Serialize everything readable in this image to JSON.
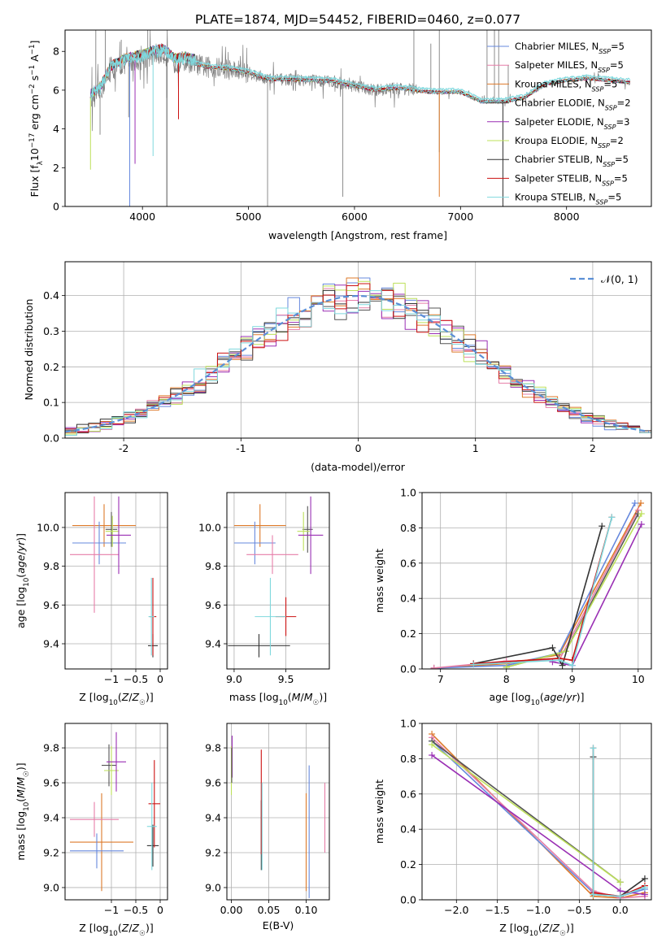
{
  "figure": {
    "title": "PLATE=1874, MJD=54452, FIBERID=0460, z=0.077"
  },
  "colors": {
    "Chabrier MILES": "#6688dd",
    "Salpeter MILES": "#e67ea8",
    "Kroupa MILES": "#dd7a2a",
    "Chabrier ELODIE": "#555555",
    "Salpeter ELODIE": "#9a2fb4",
    "Kroupa ELODIE": "#bde05a",
    "Chabrier STELIB": "#333333",
    "Salpeter STELIB": "#cc1111",
    "Kroupa STELIB": "#7fd8dd",
    "data": "#808080",
    "gaussian": "#5b8fd6"
  },
  "chart_data": [
    {
      "id": "spectrum",
      "type": "line",
      "xlabel": "wavelength [Angstrom, rest frame]",
      "ylabel": "Flux [f_λ10^-17 erg cm^-2 s^-1 A^-1]",
      "xlim": [
        3270,
        8800
      ],
      "ylim": [
        0,
        9.1
      ],
      "xticks": [
        4000,
        5000,
        6000,
        7000,
        8000
      ],
      "yticks": [
        0,
        2,
        4,
        6,
        8
      ],
      "grid": false,
      "legend_position": "upper-right",
      "legend": [
        {
          "model": "Chabrier MILES",
          "prefix": "Chabrier MILES, N",
          "sub": "SSP",
          "suffix": "=5"
        },
        {
          "model": "Salpeter MILES",
          "prefix": "Salpeter MILES, N",
          "sub": "SSP",
          "suffix": "=5"
        },
        {
          "model": "Kroupa MILES",
          "prefix": "Kroupa MILES, N",
          "sub": "SSP",
          "suffix": "=5"
        },
        {
          "model": "Chabrier ELODIE",
          "prefix": "Chabrier ELODIE, N",
          "sub": "SSP",
          "suffix": "=2"
        },
        {
          "model": "Salpeter ELODIE",
          "prefix": "Salpeter ELODIE, N",
          "sub": "SSP",
          "suffix": "=3"
        },
        {
          "model": "Kroupa ELODIE",
          "prefix": "Kroupa ELODIE, N",
          "sub": "SSP",
          "suffix": "=2"
        },
        {
          "model": "Chabrier STELIB",
          "prefix": "Chabrier STELIB, N",
          "sub": "SSP",
          "suffix": "=5"
        },
        {
          "model": "Salpeter STELIB",
          "prefix": "Salpeter STELIB, N",
          "sub": "SSP",
          "suffix": "=5"
        },
        {
          "model": "Kroupa STELIB",
          "prefix": "Kroupa STELIB, N",
          "sub": "SSP",
          "suffix": "=5"
        }
      ],
      "continuum": [
        [
          3520,
          5.6
        ],
        [
          3600,
          5.9
        ],
        [
          3700,
          7.0
        ],
        [
          3800,
          7.3
        ],
        [
          3900,
          7.5
        ],
        [
          4000,
          7.6
        ],
        [
          4100,
          7.8
        ],
        [
          4200,
          7.9
        ],
        [
          4300,
          7.4
        ],
        [
          4400,
          7.5
        ],
        [
          4600,
          7.2
        ],
        [
          4800,
          7.1
        ],
        [
          5000,
          6.9
        ],
        [
          5200,
          6.55
        ],
        [
          5400,
          6.55
        ],
        [
          5600,
          6.5
        ],
        [
          5800,
          6.45
        ],
        [
          6000,
          6.2
        ],
        [
          6200,
          6.0
        ],
        [
          6400,
          6.1
        ],
        [
          6500,
          6.05
        ],
        [
          6700,
          5.9
        ],
        [
          7000,
          5.9
        ],
        [
          7200,
          5.4
        ],
        [
          7400,
          5.4
        ],
        [
          7600,
          5.6
        ],
        [
          7800,
          6.3
        ],
        [
          8000,
          6.5
        ],
        [
          8200,
          6.6
        ],
        [
          8400,
          6.5
        ],
        [
          8600,
          6.4
        ]
      ],
      "model_spike_dips": [
        [
          3510,
          1.9
        ],
        [
          3880,
          0
        ],
        [
          3930,
          2.2
        ],
        [
          4100,
          2.6
        ],
        [
          4230,
          0
        ],
        [
          4340,
          4.5
        ],
        [
          6800,
          0.5
        ],
        [
          7400,
          0
        ]
      ],
      "data_spike_peaks": [
        [
          3560,
          9.1
        ],
        [
          3650,
          9.1
        ],
        [
          3800,
          8.6
        ],
        [
          4050,
          9.1
        ],
        [
          6560,
          9.1
        ],
        [
          6720,
          8.4
        ],
        [
          6800,
          9.1
        ],
        [
          7250,
          9.1
        ],
        [
          7320,
          9.1
        ],
        [
          7360,
          9.1
        ],
        [
          7450,
          7.3
        ]
      ],
      "data_spike_dips": [
        [
          3600,
          3.7
        ],
        [
          3870,
          4.6
        ],
        [
          4230,
          5.6
        ],
        [
          5180,
          0
        ],
        [
          5890,
          0.5
        ],
        [
          6580,
          6.2
        ],
        [
          6800,
          2.8
        ]
      ]
    },
    {
      "id": "residual-histogram",
      "type": "bar",
      "xlabel": "(data-model)/error",
      "ylabel": "Normed distribution",
      "xlim": [
        -2.5,
        2.5
      ],
      "ylim": [
        0,
        0.495
      ],
      "xticks": [
        -2,
        -1,
        0,
        1,
        2
      ],
      "yticks": [
        0.0,
        0.1,
        0.2,
        0.3,
        0.4
      ],
      "grid": true,
      "legend_position": "upper-right",
      "gaussian_label": "𝒩(0, 1)",
      "bin_width": 0.1,
      "bin_start": -2.5
    },
    {
      "id": "age-vs-Z",
      "type": "scatter",
      "xlabel": "Z [log10(Z/Z☉)]",
      "ylabel": "age [log10(age/yr)]",
      "xlim": [
        -1.95,
        0.15
      ],
      "ylim": [
        9.27,
        10.18
      ],
      "xticks": [
        -1,
        -0.5,
        0
      ],
      "xticklabels": [
        "−1",
        "−0.5",
        "0"
      ],
      "yticks": [
        9.4,
        9.6,
        9.8,
        10.0
      ],
      "grid": true,
      "errorbars": [
        {
          "model": "Kroupa MILES",
          "x": -1.15,
          "y": 10.01,
          "xerr": 0.65,
          "yerr": 0.11
        },
        {
          "model": "Chabrier MILES",
          "x": -1.25,
          "y": 9.92,
          "xerr": 0.55,
          "yerr": 0.11
        },
        {
          "model": "Salpeter MILES",
          "x": -1.35,
          "y": 9.86,
          "xerr": 0.5,
          "yerr": 0.3
        },
        {
          "model": "Chabrier ELODIE",
          "x": -1.0,
          "y": 9.99,
          "xerr": 0.12,
          "yerr": 0.09
        },
        {
          "model": "Kroupa ELODIE",
          "x": -0.98,
          "y": 9.98,
          "xerr": 0.14,
          "yerr": 0.08
        },
        {
          "model": "Salpeter ELODIE",
          "x": -0.85,
          "y": 9.96,
          "xerr": 0.25,
          "yerr": 0.2
        },
        {
          "model": "Chabrier STELIB",
          "x": -0.15,
          "y": 9.39,
          "xerr": 0.1,
          "yerr": 0.06
        },
        {
          "model": "Salpeter STELIB",
          "x": -0.15,
          "y": 9.54,
          "xerr": 0.07,
          "yerr": 0.2
        },
        {
          "model": "Kroupa STELIB",
          "x": -0.18,
          "y": 9.54,
          "xerr": 0.06,
          "yerr": 0.2
        }
      ]
    },
    {
      "id": "age-vs-mass",
      "type": "scatter",
      "xlabel": "mass [log10(M/M☉)]",
      "ylabel": "",
      "xlim": [
        8.93,
        9.92
      ],
      "ylim": [
        9.27,
        10.18
      ],
      "xticks": [
        9.0,
        9.5
      ],
      "xticklabels": [
        "9.0",
        "9.5"
      ],
      "yticks": [
        9.4,
        9.6,
        9.8,
        10.0
      ],
      "grid": true,
      "errorbars": [
        {
          "model": "Kroupa MILES",
          "x": 9.25,
          "y": 10.01,
          "xerr": 0.25,
          "yerr": 0.11
        },
        {
          "model": "Chabrier MILES",
          "x": 9.2,
          "y": 9.92,
          "xerr": 0.2,
          "yerr": 0.11
        },
        {
          "model": "Salpeter MILES",
          "x": 9.37,
          "y": 9.86,
          "xerr": 0.25,
          "yerr": 0.1
        },
        {
          "model": "Chabrier ELODIE",
          "x": 9.71,
          "y": 9.99,
          "xerr": 0.05,
          "yerr": 0.12
        },
        {
          "model": "Kroupa ELODIE",
          "x": 9.67,
          "y": 9.98,
          "xerr": 0.06,
          "yerr": 0.1
        },
        {
          "model": "Salpeter ELODIE",
          "x": 9.74,
          "y": 9.96,
          "xerr": 0.12,
          "yerr": 0.2
        },
        {
          "model": "Chabrier STELIB",
          "x": 9.24,
          "y": 9.39,
          "xerr": 0.3,
          "yerr": 0.06
        },
        {
          "model": "Salpeter STELIB",
          "x": 9.5,
          "y": 9.54,
          "xerr": 0.1,
          "yerr": 0.1
        },
        {
          "model": "Kroupa STELIB",
          "x": 9.35,
          "y": 9.54,
          "xerr": 0.15,
          "yerr": 0.2
        }
      ]
    },
    {
      "id": "mass-weight-vs-age",
      "type": "line",
      "xlabel": "age [log10(age/yr)]",
      "ylabel": "mass weight",
      "xlim": [
        6.72,
        10.2
      ],
      "ylim": [
        0,
        1.0
      ],
      "xticks": [
        7,
        8,
        9,
        10
      ],
      "yticks": [
        0.0,
        0.2,
        0.4,
        0.6,
        0.8,
        1.0
      ],
      "grid": true,
      "series": [
        {
          "model": "Kroupa MILES",
          "x": [
            6.9,
            8.0,
            8.8,
            10.04
          ],
          "y": [
            0.005,
            0.03,
            0.08,
            0.94
          ]
        },
        {
          "model": "Chabrier MILES",
          "x": [
            6.9,
            8.0,
            8.8,
            9.95
          ],
          "y": [
            0.005,
            0.02,
            0.09,
            0.94
          ]
        },
        {
          "model": "Salpeter MILES",
          "x": [
            6.9,
            8.0,
            8.8,
            10.0
          ],
          "y": [
            0.005,
            0.045,
            0.05,
            0.9
          ]
        },
        {
          "model": "Chabrier ELODIE",
          "x": [
            8.0,
            8.9,
            10.0
          ],
          "y": [
            0.01,
            0.1,
            0.88
          ]
        },
        {
          "model": "Salpeter ELODIE",
          "x": [
            8.7,
            9.0,
            10.05
          ],
          "y": [
            0.04,
            0.02,
            0.82
          ]
        },
        {
          "model": "Kroupa ELODIE",
          "x": [
            8.0,
            8.9,
            10.05
          ],
          "y": [
            0.01,
            0.1,
            0.88
          ]
        },
        {
          "model": "Chabrier STELIB",
          "x": [
            7.5,
            8.7,
            8.85,
            9.45
          ],
          "y": [
            0.03,
            0.12,
            0.02,
            0.81
          ]
        },
        {
          "model": "Salpeter STELIB",
          "x": [
            7.5,
            8.8,
            9.0,
            9.6
          ],
          "y": [
            0.03,
            0.06,
            0.05,
            0.86
          ]
        },
        {
          "model": "Kroupa STELIB",
          "x": [
            7.5,
            8.8,
            9.0,
            9.6
          ],
          "y": [
            0.025,
            0.05,
            0.02,
            0.86
          ]
        }
      ]
    },
    {
      "id": "mass-vs-Z",
      "type": "scatter",
      "xlabel": "Z [log10(Z/Z☉)]",
      "ylabel": "mass [log10(M/M☉)]",
      "xlim": [
        -1.95,
        0.15
      ],
      "ylim": [
        8.93,
        9.94
      ],
      "xticks": [
        -1,
        -0.5,
        0
      ],
      "xticklabels": [
        "−1",
        "−0.5",
        "0"
      ],
      "yticks": [
        9.0,
        9.2,
        9.4,
        9.6,
        9.8
      ],
      "grid": true,
      "errorbars": [
        {
          "model": "Kroupa MILES",
          "x": -1.2,
          "y": 9.26,
          "xerr": 0.65,
          "yerr": 0.28
        },
        {
          "model": "Chabrier MILES",
          "x": -1.3,
          "y": 9.21,
          "xerr": 0.55,
          "yerr": 0.1
        },
        {
          "model": "Salpeter MILES",
          "x": -1.35,
          "y": 9.39,
          "xerr": 0.5,
          "yerr": 0.1
        },
        {
          "model": "Chabrier ELODIE",
          "x": -1.05,
          "y": 9.7,
          "xerr": 0.15,
          "yerr": 0.12
        },
        {
          "model": "Kroupa ELODIE",
          "x": -1.0,
          "y": 9.67,
          "xerr": 0.15,
          "yerr": 0.14
        },
        {
          "model": "Salpeter ELODIE",
          "x": -0.9,
          "y": 9.72,
          "xerr": 0.2,
          "yerr": 0.17
        },
        {
          "model": "Chabrier STELIB",
          "x": -0.15,
          "y": 9.24,
          "xerr": 0.12,
          "yerr": 0.12
        },
        {
          "model": "Salpeter STELIB",
          "x": -0.12,
          "y": 9.48,
          "xerr": 0.12,
          "yerr": 0.25
        },
        {
          "model": "Kroupa STELIB",
          "x": -0.17,
          "y": 9.35,
          "xerr": 0.1,
          "yerr": 0.25
        }
      ]
    },
    {
      "id": "mass-vs-EBV",
      "type": "scatter",
      "xlabel": "E(B-V)",
      "ylabel": "",
      "xlim": [
        -0.006,
        0.131
      ],
      "ylim": [
        8.93,
        9.94
      ],
      "xticks": [
        0.0,
        0.05,
        0.1
      ],
      "xticklabels": [
        "0.00",
        "0.05",
        "0.10"
      ],
      "yticks": [
        9.0,
        9.2,
        9.4,
        9.6,
        9.8
      ],
      "grid": true,
      "errorbars": [
        {
          "model": "Kroupa ELODIE",
          "x": 0.0,
          "y": 9.67,
          "xerr": 0,
          "yerr": 0.14
        },
        {
          "model": "Salpeter ELODIE",
          "x": 0.001,
          "y": 9.75,
          "xerr": 0,
          "yerr": 0.12
        },
        {
          "model": "Chabrier ELODIE",
          "x": 0.0005,
          "y": 9.7,
          "xerr": 0,
          "yerr": 0.1
        },
        {
          "model": "Chabrier STELIB",
          "x": 0.04,
          "y": 9.3,
          "xerr": 0,
          "yerr": 0.2
        },
        {
          "model": "Salpeter STELIB",
          "x": 0.04,
          "y": 9.49,
          "xerr": 0,
          "yerr": 0.3
        },
        {
          "model": "Kroupa STELIB",
          "x": 0.041,
          "y": 9.35,
          "xerr": 0,
          "yerr": 0.25
        },
        {
          "model": "Kroupa MILES",
          "x": 0.1,
          "y": 9.26,
          "xerr": 0,
          "yerr": 0.28
        },
        {
          "model": "Chabrier MILES",
          "x": 0.104,
          "y": 9.32,
          "xerr": 0,
          "yerr": 0.38
        },
        {
          "model": "Salpeter MILES",
          "x": 0.125,
          "y": 9.4,
          "xerr": 0,
          "yerr": 0.2
        }
      ]
    },
    {
      "id": "mass-weight-vs-Z",
      "type": "line",
      "xlabel": "Z [log10(Z/Z☉)]",
      "ylabel": "mass weight",
      "xlim": [
        -2.42,
        0.38
      ],
      "ylim": [
        0,
        1.0
      ],
      "xticks": [
        -2.0,
        -1.5,
        -1.0,
        -0.5,
        0.0
      ],
      "xticklabels": [
        "−2.0",
        "−1.5",
        "−1.0",
        "−0.5",
        "0.0"
      ],
      "yticks": [
        0.0,
        0.2,
        0.4,
        0.6,
        0.8,
        1.0
      ],
      "grid": true,
      "series": [
        {
          "model": "Kroupa MILES",
          "x": [
            -2.3,
            -0.33,
            0.0,
            0.3
          ],
          "y": [
            0.94,
            0.02,
            0.01,
            0.04
          ]
        },
        {
          "model": "Chabrier MILES",
          "x": [
            -2.3,
            -0.33,
            0.0,
            0.3
          ],
          "y": [
            0.9,
            0.04,
            0.02,
            0.06
          ]
        },
        {
          "model": "Salpeter MILES",
          "x": [
            -2.3,
            -0.33,
            0.0,
            0.3
          ],
          "y": [
            0.92,
            0.05,
            0.01,
            0.02
          ]
        },
        {
          "model": "Chabrier ELODIE",
          "x": [
            -2.3,
            0.0
          ],
          "y": [
            0.9,
            0.1
          ]
        },
        {
          "model": "Salpeter ELODIE",
          "x": [
            -2.3,
            0.0,
            0.3
          ],
          "y": [
            0.82,
            0.05,
            0.03
          ]
        },
        {
          "model": "Kroupa ELODIE",
          "x": [
            -2.3,
            0.0
          ],
          "y": [
            0.88,
            0.1
          ]
        },
        {
          "model": "Chabrier STELIB",
          "x": [
            -0.33,
            -0.33,
            0.0,
            0.3
          ],
          "y": [
            0.81,
            0.03,
            0.02,
            0.12
          ]
        },
        {
          "model": "Salpeter STELIB",
          "x": [
            -0.33,
            -0.33,
            0.0,
            0.3
          ],
          "y": [
            0.86,
            0.04,
            0.02,
            0.08
          ]
        },
        {
          "model": "Kroupa STELIB",
          "x": [
            -0.33,
            -0.33,
            0.0,
            0.3
          ],
          "y": [
            0.86,
            0.03,
            0.02,
            0.07
          ]
        }
      ]
    }
  ]
}
